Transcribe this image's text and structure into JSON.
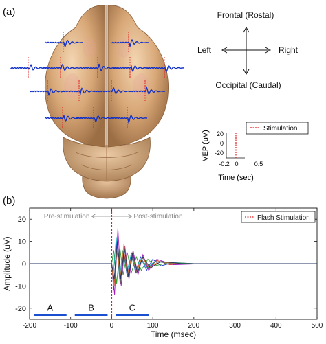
{
  "panel_a": {
    "label": "(a)",
    "orientation": {
      "frontal": "Frontal (Rostal)",
      "occipital": "Occipital (Caudal)",
      "left": "Left",
      "right": "Right"
    },
    "inset": {
      "ylabel": "VEP (uV)",
      "xlabel": "Time (sec)",
      "yticks": [
        "20",
        "0",
        "-20"
      ],
      "xticks": [
        "-0.2",
        "0",
        "0.5"
      ],
      "legend": "Stimulation"
    }
  },
  "panel_b": {
    "label": "(b)"
  },
  "colors": {
    "trace_blue": "#1030c8",
    "stim_red": "#e02020",
    "segment_blue": "#1a4fd0"
  },
  "chart_data": {
    "type": "line",
    "title": "",
    "xlabel": "Time (msec)",
    "ylabel": "Amplitude (uV)",
    "xlim": [
      -200,
      500
    ],
    "ylim": [
      -25,
      25
    ],
    "xticks": [
      -200,
      -100,
      0,
      100,
      200,
      300,
      400,
      500
    ],
    "yticks": [
      -20,
      -10,
      0,
      10,
      20
    ],
    "grid": false,
    "legend": {
      "position": "top-right",
      "entries": [
        "Flash Stimulation"
      ]
    },
    "stimulus_time": 0,
    "annotations": {
      "pre": "Pre-stimulation",
      "post": "Post-stimulation"
    },
    "segments": [
      {
        "label": "A",
        "start": -190,
        "end": -110
      },
      {
        "label": "B",
        "start": -90,
        "end": -10
      },
      {
        "label": "C",
        "start": 10,
        "end": 90
      }
    ],
    "series": [
      {
        "color": "#1f3fd0",
        "values": [
          [
            -200,
            0
          ],
          [
            0,
            0
          ],
          [
            5,
            -12
          ],
          [
            12,
            10
          ],
          [
            20,
            -8
          ],
          [
            28,
            6
          ],
          [
            38,
            -6
          ],
          [
            48,
            5
          ],
          [
            58,
            -4
          ],
          [
            70,
            3
          ],
          [
            85,
            -3
          ],
          [
            100,
            2
          ],
          [
            120,
            -1
          ],
          [
            150,
            0.5
          ],
          [
            200,
            0
          ],
          [
            500,
            0
          ]
        ]
      },
      {
        "color": "#d03030",
        "values": [
          [
            -200,
            0
          ],
          [
            0,
            0
          ],
          [
            6,
            -10
          ],
          [
            14,
            8
          ],
          [
            22,
            -6
          ],
          [
            30,
            5
          ],
          [
            40,
            -5
          ],
          [
            50,
            4
          ],
          [
            60,
            -3
          ],
          [
            75,
            3
          ],
          [
            90,
            -2
          ],
          [
            110,
            1.5
          ],
          [
            140,
            -0.5
          ],
          [
            200,
            0
          ],
          [
            500,
            0
          ]
        ]
      },
      {
        "color": "#30a030",
        "values": [
          [
            -200,
            0
          ],
          [
            0,
            0
          ],
          [
            5,
            6
          ],
          [
            12,
            -9
          ],
          [
            20,
            7
          ],
          [
            28,
            -5
          ],
          [
            38,
            5
          ],
          [
            48,
            -4
          ],
          [
            60,
            3
          ],
          [
            72,
            -3
          ],
          [
            88,
            2
          ],
          [
            105,
            -1
          ],
          [
            140,
            0.5
          ],
          [
            200,
            0
          ],
          [
            500,
            0
          ]
        ]
      },
      {
        "color": "#a020c0",
        "values": [
          [
            -200,
            0
          ],
          [
            0,
            0
          ],
          [
            7,
            -14
          ],
          [
            15,
            16
          ],
          [
            23,
            -10
          ],
          [
            32,
            8
          ],
          [
            42,
            -7
          ],
          [
            52,
            6
          ],
          [
            64,
            -5
          ],
          [
            76,
            4
          ],
          [
            90,
            -3
          ],
          [
            110,
            2
          ],
          [
            150,
            -0.5
          ],
          [
            220,
            0
          ],
          [
            500,
            0
          ]
        ]
      },
      {
        "color": "#20b0c0",
        "values": [
          [
            -200,
            0
          ],
          [
            0,
            0
          ],
          [
            4,
            -5
          ],
          [
            11,
            12
          ],
          [
            19,
            -7
          ],
          [
            27,
            6
          ],
          [
            37,
            -4
          ],
          [
            47,
            4
          ],
          [
            58,
            -3
          ],
          [
            70,
            2
          ],
          [
            86,
            -2
          ],
          [
            105,
            1
          ],
          [
            150,
            0
          ],
          [
            500,
            0
          ]
        ]
      },
      {
        "color": "#606060",
        "values": [
          [
            -200,
            0
          ],
          [
            0,
            0
          ],
          [
            6,
            -8
          ],
          [
            13,
            6
          ],
          [
            21,
            -9
          ],
          [
            29,
            5
          ],
          [
            39,
            -6
          ],
          [
            49,
            3
          ],
          [
            60,
            -4
          ],
          [
            73,
            2
          ],
          [
            88,
            -2
          ],
          [
            108,
            1
          ],
          [
            150,
            0
          ],
          [
            500,
            0
          ]
        ]
      },
      {
        "color": "#e08020",
        "values": [
          [
            -200,
            0
          ],
          [
            0,
            0
          ],
          [
            5,
            -10
          ],
          [
            13,
            7
          ],
          [
            21,
            -6
          ],
          [
            30,
            9
          ],
          [
            40,
            -4
          ],
          [
            50,
            5
          ],
          [
            62,
            -3
          ],
          [
            74,
            3
          ],
          [
            92,
            -2
          ],
          [
            115,
            1
          ],
          [
            160,
            0
          ],
          [
            500,
            0
          ]
        ]
      },
      {
        "color": "#203060",
        "values": [
          [
            -200,
            0
          ],
          [
            0,
            0
          ],
          [
            6,
            -7
          ],
          [
            14,
            10
          ],
          [
            22,
            -7
          ],
          [
            31,
            7
          ],
          [
            41,
            -6
          ],
          [
            51,
            5
          ],
          [
            63,
            -4
          ],
          [
            76,
            3
          ],
          [
            94,
            -2
          ],
          [
            120,
            1
          ],
          [
            170,
            0
          ],
          [
            500,
            0
          ]
        ]
      }
    ]
  }
}
